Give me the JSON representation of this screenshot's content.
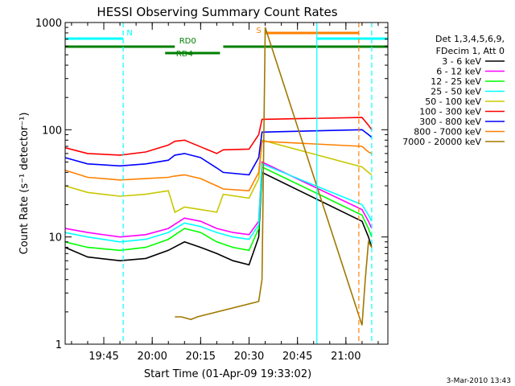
{
  "chart_data": {
    "type": "line",
    "title": "HESSI Observing Summary Count Rates",
    "xlabel": "Start Time (01-Apr-09 19:33:02)",
    "ylabel": "Count Rate (s⁻¹ detector⁻¹)",
    "ylim": [
      1,
      1000
    ],
    "yscale": "log",
    "xlim": [
      "19:33:02",
      "21:13:00"
    ],
    "grid": false,
    "legend_position": "right",
    "x_ticks": [
      "19:45",
      "20:00",
      "20:15",
      "20:30",
      "20:45",
      "21:00"
    ],
    "y_ticks": [
      "1",
      "10",
      "100",
      "1000"
    ],
    "legend_header": [
      "Det 1,3,4,5,6,9,",
      "FDecim 1, Att 0"
    ],
    "footer_timestamp": "3-Mar-2010 13:43",
    "flags": [
      {
        "label": "N",
        "color": "#00ffff",
        "segments": [
          [
            "19:33",
            "19:51"
          ],
          [
            "20:51",
            "21:13"
          ]
        ]
      },
      {
        "label": "S",
        "color": "#ff8000",
        "segments": [
          [
            "20:35",
            "21:04"
          ]
        ]
      },
      {
        "label": "RD0",
        "color": "#007f00",
        "segments": [
          [
            "19:33",
            "20:07"
          ],
          [
            "20:22",
            "21:13"
          ]
        ]
      },
      {
        "label": "RD4",
        "color": "#007f00",
        "segments": [
          [
            "20:04",
            "20:21"
          ]
        ]
      }
    ],
    "vertical_markers": [
      {
        "time": "19:51",
        "color": "#00ffff",
        "style": "dashed"
      },
      {
        "time": "20:51",
        "color": "#00ffff",
        "style": "solid"
      },
      {
        "time": "21:04",
        "color": "#ff8000",
        "style": "dashed"
      },
      {
        "time": "21:08",
        "color": "#00ffff",
        "style": "dashed"
      }
    ],
    "series": [
      {
        "name": "3 - 6 keV",
        "color": "#000000",
        "points": [
          [
            "19:33",
            8
          ],
          [
            "19:40",
            6.5
          ],
          [
            "19:50",
            6
          ],
          [
            "19:58",
            6.3
          ],
          [
            "20:05",
            7.5
          ],
          [
            "20:10",
            9
          ],
          [
            "20:15",
            8
          ],
          [
            "20:20",
            7
          ],
          [
            "20:25",
            6
          ],
          [
            "20:30",
            5.5
          ],
          [
            "20:33",
            10
          ],
          [
            "20:34",
            40
          ],
          [
            "21:05",
            14
          ],
          [
            "21:07",
            10
          ],
          [
            "21:08",
            8
          ]
        ]
      },
      {
        "name": "6 - 12 keV",
        "color": "#ff00ff",
        "points": [
          [
            "19:33",
            12
          ],
          [
            "19:40",
            11
          ],
          [
            "19:50",
            10
          ],
          [
            "19:58",
            10.5
          ],
          [
            "20:05",
            12
          ],
          [
            "20:10",
            15
          ],
          [
            "20:15",
            14
          ],
          [
            "20:20",
            12
          ],
          [
            "20:25",
            11
          ],
          [
            "20:30",
            10.5
          ],
          [
            "20:33",
            14
          ],
          [
            "20:34",
            50
          ],
          [
            "21:05",
            18
          ],
          [
            "21:07",
            14
          ],
          [
            "21:08",
            12
          ]
        ]
      },
      {
        "name": "12 - 25 keV",
        "color": "#00ff00",
        "points": [
          [
            "19:33",
            9
          ],
          [
            "19:40",
            8
          ],
          [
            "19:50",
            7.5
          ],
          [
            "19:58",
            8
          ],
          [
            "20:05",
            9.5
          ],
          [
            "20:10",
            12
          ],
          [
            "20:15",
            11
          ],
          [
            "20:20",
            9
          ],
          [
            "20:25",
            8
          ],
          [
            "20:30",
            7.5
          ],
          [
            "20:33",
            12
          ],
          [
            "20:34",
            45
          ],
          [
            "21:05",
            16
          ],
          [
            "21:07",
            12
          ],
          [
            "21:08",
            10
          ]
        ]
      },
      {
        "name": "25 - 50 keV",
        "color": "#00ffff",
        "points": [
          [
            "19:33",
            11
          ],
          [
            "19:40",
            10
          ],
          [
            "19:50",
            9
          ],
          [
            "19:58",
            9.5
          ],
          [
            "20:05",
            11
          ],
          [
            "20:10",
            13.5
          ],
          [
            "20:15",
            12.5
          ],
          [
            "20:20",
            11
          ],
          [
            "20:25",
            10
          ],
          [
            "20:30",
            9.5
          ],
          [
            "20:33",
            13
          ],
          [
            "20:34",
            48
          ],
          [
            "21:05",
            20
          ],
          [
            "21:07",
            16
          ],
          [
            "21:08",
            14
          ]
        ]
      },
      {
        "name": "50 - 100 keV",
        "color": "#c8c800",
        "points": [
          [
            "19:33",
            30
          ],
          [
            "19:40",
            26
          ],
          [
            "19:50",
            24
          ],
          [
            "19:58",
            25
          ],
          [
            "20:05",
            27
          ],
          [
            "20:07",
            17
          ],
          [
            "20:10",
            19
          ],
          [
            "20:15",
            18
          ],
          [
            "20:20",
            17
          ],
          [
            "20:22",
            25
          ],
          [
            "20:30",
            23
          ],
          [
            "20:33",
            35
          ],
          [
            "20:34",
            80
          ],
          [
            "21:05",
            45
          ],
          [
            "21:07",
            40
          ],
          [
            "21:08",
            38
          ]
        ]
      },
      {
        "name": "100 - 300 keV",
        "color": "#ff0000",
        "points": [
          [
            "19:33",
            68
          ],
          [
            "19:40",
            60
          ],
          [
            "19:50",
            58
          ],
          [
            "19:58",
            62
          ],
          [
            "20:05",
            72
          ],
          [
            "20:07",
            78
          ],
          [
            "20:10",
            80
          ],
          [
            "20:20",
            60
          ],
          [
            "20:22",
            65
          ],
          [
            "20:30",
            66
          ],
          [
            "20:33",
            90
          ],
          [
            "20:34",
            125
          ],
          [
            "21:05",
            130
          ],
          [
            "21:07",
            110
          ],
          [
            "21:08",
            100
          ]
        ]
      },
      {
        "name": "300 - 800 keV",
        "color": "#0000ff",
        "points": [
          [
            "19:33",
            55
          ],
          [
            "19:40",
            48
          ],
          [
            "19:50",
            46
          ],
          [
            "19:58",
            48
          ],
          [
            "20:05",
            52
          ],
          [
            "20:07",
            58
          ],
          [
            "20:10",
            60
          ],
          [
            "20:15",
            55
          ],
          [
            "20:20",
            44
          ],
          [
            "20:22",
            40
          ],
          [
            "20:30",
            38
          ],
          [
            "20:33",
            55
          ],
          [
            "20:34",
            95
          ],
          [
            "21:05",
            100
          ],
          [
            "21:07",
            90
          ],
          [
            "21:08",
            85
          ]
        ]
      },
      {
        "name": "800 - 7000 keV",
        "color": "#ff8000",
        "points": [
          [
            "19:33",
            42
          ],
          [
            "19:40",
            36
          ],
          [
            "19:50",
            34
          ],
          [
            "19:58",
            35
          ],
          [
            "20:05",
            36
          ],
          [
            "20:07",
            37
          ],
          [
            "20:10",
            38
          ],
          [
            "20:15",
            35
          ],
          [
            "20:20",
            30
          ],
          [
            "20:22",
            28
          ],
          [
            "20:30",
            27
          ],
          [
            "20:33",
            40
          ],
          [
            "20:34",
            78
          ],
          [
            "21:05",
            70
          ],
          [
            "21:07",
            62
          ],
          [
            "21:08",
            60
          ]
        ]
      },
      {
        "name": "7000 - 20000 keV",
        "color": "#a07800",
        "points": [
          [
            "20:07",
            1.8
          ],
          [
            "20:09",
            1.8
          ],
          [
            "20:12",
            1.7
          ],
          [
            "20:14",
            1.8
          ],
          [
            "20:33",
            2.5
          ],
          [
            "20:34",
            4
          ],
          [
            "20:35",
            900
          ],
          [
            "21:05",
            1.5
          ],
          [
            "21:06",
            4
          ],
          [
            "21:07",
            9
          ],
          [
            "21:08",
            8
          ]
        ]
      }
    ]
  }
}
